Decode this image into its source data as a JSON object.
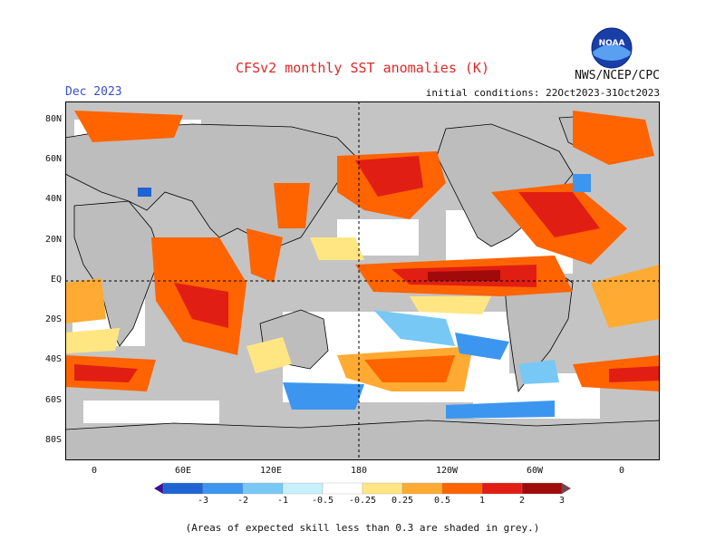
{
  "header": {
    "title": "CFSv2 monthly SST anomalies (K)",
    "agency": "NWS/NCEP/CPC",
    "month": "Dec 2023",
    "initial_conditions": "initial conditions: 22Oct2023-31Oct2023",
    "logo_text": "NOAA"
  },
  "axes": {
    "lat_labels": [
      "80N",
      "60N",
      "40N",
      "20N",
      "EQ",
      "20S",
      "40S",
      "60S",
      "80S"
    ],
    "lon_labels": [
      "0",
      "60E",
      "120E",
      "180",
      "120W",
      "60W",
      "0"
    ]
  },
  "colorbar": {
    "labels": [
      "-3",
      "-2",
      "-1",
      "-0.5",
      "-0.25",
      "0.25",
      "0.5",
      "1",
      "2",
      "3"
    ],
    "colors": [
      "#3c1496",
      "#1e64d2",
      "#3c96f0",
      "#78c8f5",
      "#c8f0fa",
      "#ffffff",
      "#ffe682",
      "#ffaa32",
      "#ff6400",
      "#e11e14",
      "#a00a0a",
      "#784650"
    ]
  },
  "colors": {
    "land": "#c0c0c0",
    "skill_grey": "#c8c8c8",
    "ocean_neutral": "#ffffff"
  },
  "footnote": "(Areas of expected skill less than 0.3 are shaded in grey.)"
}
